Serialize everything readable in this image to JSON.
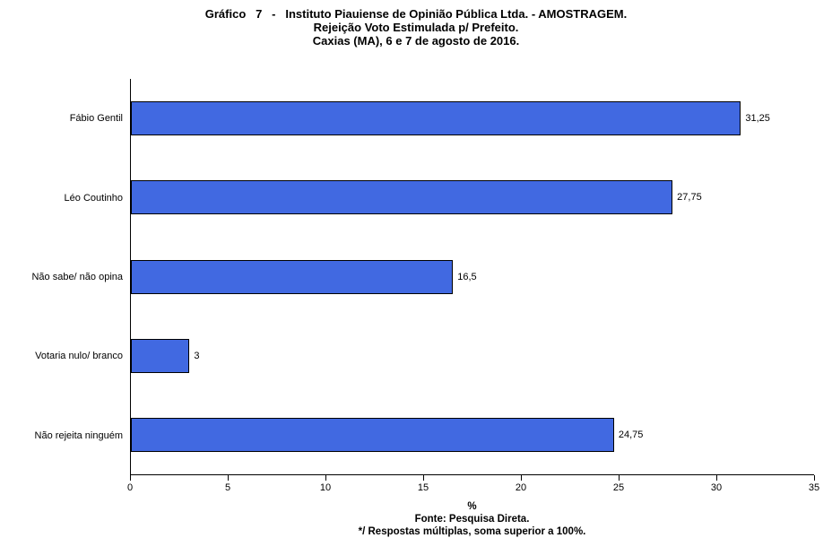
{
  "title": {
    "line1": "Gráfico   7   -   Instituto Piauiense de Opinião Pública Ltda. - AMOSTRAGEM.",
    "line2": "Rejeição Voto Estimulada p/ Prefeito.",
    "line3": "Caxias (MA), 6 e 7 de agosto de 2016."
  },
  "chart_data": {
    "type": "bar",
    "orientation": "horizontal",
    "title": "Gráfico 7 - Instituto Piauiense de Opinião Pública Ltda. - AMOSTRAGEM. Rejeição Voto Estimulada p/ Prefeito. Caxias (MA), 6 e 7 de agosto de 2016.",
    "categories": [
      "Fábio Gentil",
      "Léo Coutinho",
      "Não sabe/ não opina",
      "Votaria nulo/ branco",
      "Não rejeita ninguém"
    ],
    "values": [
      31.25,
      27.75,
      16.5,
      3,
      24.75
    ],
    "value_labels": [
      "31,25",
      "27,75",
      "16,5",
      "3",
      "24,75"
    ],
    "xlim": [
      0,
      35
    ],
    "x_ticks": [
      0,
      5,
      10,
      15,
      20,
      25,
      30,
      35
    ],
    "xlabel": "%",
    "grid": false,
    "legend": false,
    "bar_color": "#4169E1",
    "bar_border_color": "#000000"
  },
  "footer": {
    "xlabel": "%",
    "source": "Fonte: Pesquisa Direta.",
    "note": "*/ Respostas múltiplas, soma superior a 100%."
  }
}
